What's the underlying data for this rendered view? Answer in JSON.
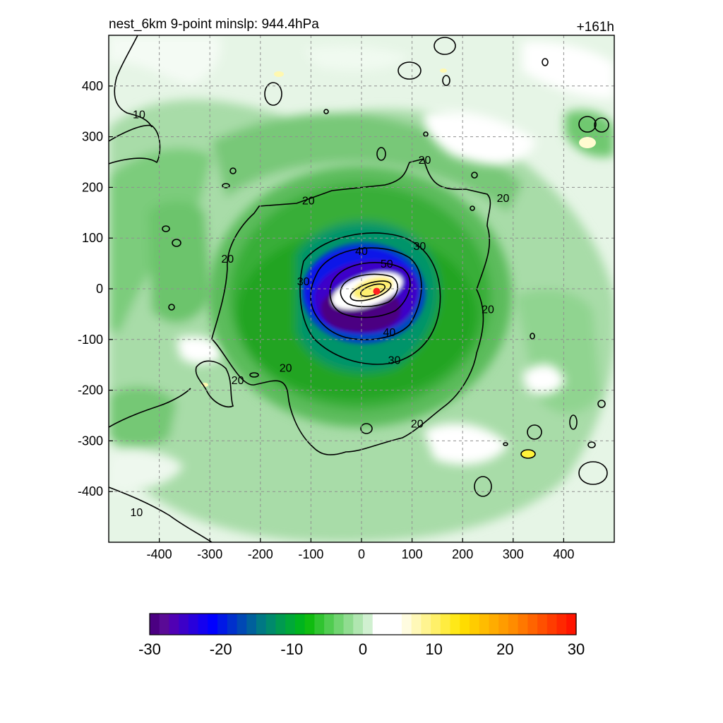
{
  "chart_data": {
    "type": "heatmap",
    "title_left": "nest_6km  9-point minslp: 944.4hPa",
    "title_right": "+161h",
    "xlabel": "",
    "ylabel": "",
    "xlim": [
      -500,
      500
    ],
    "ylim": [
      -500,
      500
    ],
    "x_ticks": [
      -400,
      -300,
      -200,
      -100,
      0,
      100,
      200,
      300,
      400
    ],
    "y_ticks": [
      -400,
      -300,
      -200,
      -100,
      0,
      100,
      200,
      300,
      400
    ],
    "grid": "on",
    "grid_style": "dashed",
    "storm_center": {
      "x": 30,
      "y": -5,
      "color": "#ff2020"
    },
    "contour_labels": [
      {
        "text": "10",
        "x": -440,
        "y": 345
      },
      {
        "text": "10",
        "x": -445,
        "y": -440
      },
      {
        "text": "20",
        "x": -265,
        "y": 60
      },
      {
        "text": "20",
        "x": -105,
        "y": 175
      },
      {
        "text": "20",
        "x": -150,
        "y": -155
      },
      {
        "text": "20",
        "x": -245,
        "y": -180
      },
      {
        "text": "20",
        "x": 125,
        "y": 255
      },
      {
        "text": "20",
        "x": 280,
        "y": 180
      },
      {
        "text": "20",
        "x": 250,
        "y": -40
      },
      {
        "text": "20",
        "x": 110,
        "y": -265
      },
      {
        "text": "30",
        "x": -115,
        "y": 15
      },
      {
        "text": "30",
        "x": 115,
        "y": 85
      },
      {
        "text": "30",
        "x": 65,
        "y": -140
      },
      {
        "text": "40",
        "x": 0,
        "y": 75
      },
      {
        "text": "40",
        "x": 55,
        "y": -85
      },
      {
        "text": "50",
        "x": 50,
        "y": 50
      }
    ],
    "colorbar": {
      "min": -30,
      "max": 30,
      "tick_labels": [
        "-30",
        "-20",
        "-10",
        "0",
        "10",
        "20",
        "30"
      ],
      "colors": [
        "#4b0082",
        "#5a0a96",
        "#5000b4",
        "#3c00c8",
        "#2800dc",
        "#1400f0",
        "#0000ff",
        "#0018e6",
        "#0030cc",
        "#0048b4",
        "#00609c",
        "#007884",
        "#008a6c",
        "#009a50",
        "#00a838",
        "#00b41e",
        "#10bc10",
        "#30c430",
        "#50cc50",
        "#70d470",
        "#90dc90",
        "#b0e6b0",
        "#d0f0d0",
        "#ffffff",
        "#ffffff",
        "#ffffff",
        "#fffce0",
        "#fff8b8",
        "#fff490",
        "#fff068",
        "#ffec40",
        "#ffe818",
        "#ffdc00",
        "#ffcc00",
        "#ffbc00",
        "#ffac00",
        "#ff9c00",
        "#ff8c00",
        "#ff7800",
        "#ff6400",
        "#ff5000",
        "#ff3c00",
        "#ff2800",
        "#ff1400"
      ]
    }
  }
}
